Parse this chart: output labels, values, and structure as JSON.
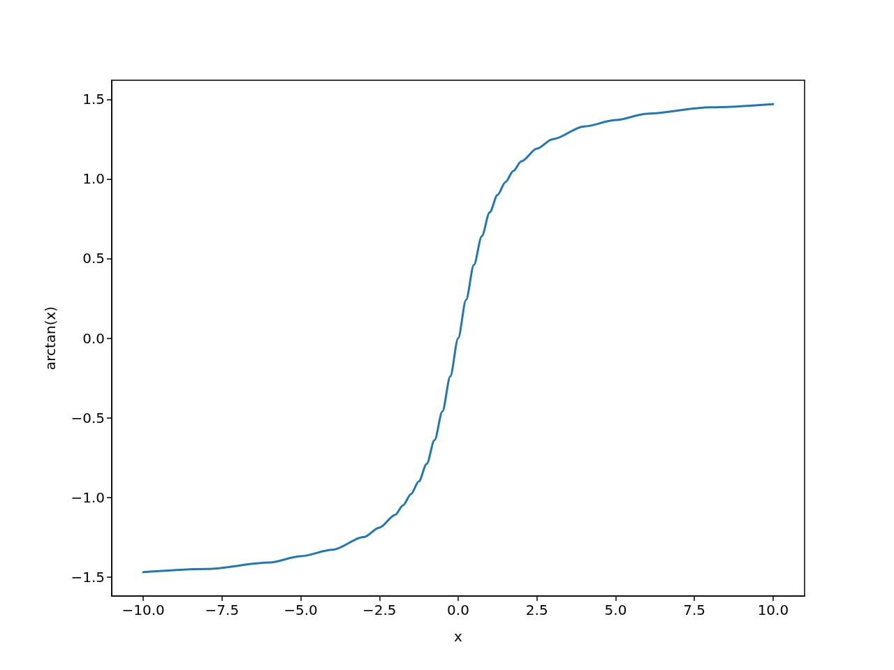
{
  "chart_data": {
    "type": "line",
    "xlabel": "x",
    "ylabel": "arctan(x)",
    "x": [
      -10,
      -8,
      -6,
      -5,
      -4,
      -3,
      -2.5,
      -2,
      -1.75,
      -1.5,
      -1.25,
      -1,
      -0.75,
      -0.5,
      -0.25,
      0,
      0.25,
      0.5,
      0.75,
      1,
      1.25,
      1.5,
      1.75,
      2,
      2.5,
      3,
      4,
      5,
      6,
      8,
      10
    ],
    "values": [
      -1.47,
      -1.45,
      -1.41,
      -1.37,
      -1.33,
      -1.25,
      -1.19,
      -1.11,
      -1.05,
      -0.98,
      -0.9,
      -0.79,
      -0.64,
      -0.46,
      -0.24,
      0,
      0.24,
      0.46,
      0.64,
      0.79,
      0.9,
      0.98,
      1.05,
      1.11,
      1.19,
      1.25,
      1.33,
      1.37,
      1.41,
      1.45,
      1.47
    ],
    "color": "#1f77b4",
    "xlim": [
      -11,
      11
    ],
    "ylim": [
      -1.62,
      1.62
    ],
    "xticks": [
      {
        "value": -10,
        "label": "−10.0"
      },
      {
        "value": -7.5,
        "label": "−7.5"
      },
      {
        "value": -5,
        "label": "−5.0"
      },
      {
        "value": -2.5,
        "label": "−2.5"
      },
      {
        "value": 0,
        "label": "0.0"
      },
      {
        "value": 2.5,
        "label": "2.5"
      },
      {
        "value": 5,
        "label": "5.0"
      },
      {
        "value": 7.5,
        "label": "7.5"
      },
      {
        "value": 10,
        "label": "10.0"
      }
    ],
    "yticks": [
      {
        "value": -1.5,
        "label": "−1.5"
      },
      {
        "value": -1,
        "label": "−1.0"
      },
      {
        "value": -0.5,
        "label": "−0.5"
      },
      {
        "value": 0,
        "label": "0.0"
      },
      {
        "value": 0.5,
        "label": "0.5"
      },
      {
        "value": 1,
        "label": "1.0"
      },
      {
        "value": 1.5,
        "label": "1.5"
      }
    ],
    "line_style": "solid"
  }
}
